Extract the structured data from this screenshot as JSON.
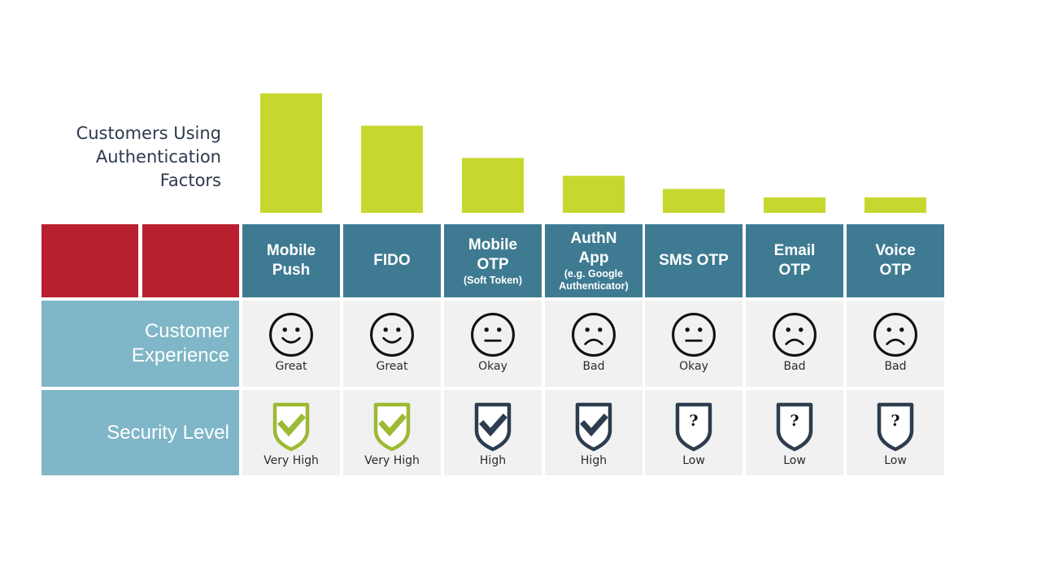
{
  "chart_data": {
    "type": "bar",
    "title_lines": [
      "Customers Using",
      "Authentication",
      "Factors"
    ],
    "categories": [
      "Mobile Push",
      "FIDO",
      "Mobile OTP",
      "AuthN App",
      "SMS OTP",
      "Email OTP",
      "Voice OTP"
    ],
    "values": [
      100,
      73,
      46,
      31,
      20,
      13,
      13
    ],
    "ylim": [
      0,
      100
    ],
    "bar_color": "#c6d82f"
  },
  "columns": [
    {
      "header_lines": [
        "Mobile",
        "Push"
      ],
      "header_sub": [],
      "experience": "Great",
      "experience_icon": "smile-icon",
      "security": "Very High",
      "security_icon": "shield-check-green-icon"
    },
    {
      "header_lines": [
        "FIDO"
      ],
      "header_sub": [],
      "experience": "Great",
      "experience_icon": "smile-icon",
      "security": "Very High",
      "security_icon": "shield-check-green-icon"
    },
    {
      "header_lines": [
        "Mobile",
        "OTP"
      ],
      "header_sub": [
        "(Soft Token)"
      ],
      "experience": "Okay",
      "experience_icon": "neutral-face-icon",
      "security": "High",
      "security_icon": "shield-check-dark-icon"
    },
    {
      "header_lines": [
        "AuthN",
        "App"
      ],
      "header_sub": [
        "(e.g. Google",
        "Authenticator)"
      ],
      "experience": "Bad",
      "experience_icon": "frown-icon",
      "security": "High",
      "security_icon": "shield-check-dark-icon"
    },
    {
      "header_lines": [
        "SMS OTP"
      ],
      "header_sub": [],
      "experience": "Okay",
      "experience_icon": "neutral-face-icon",
      "security": "Low",
      "security_icon": "shield-question-icon"
    },
    {
      "header_lines": [
        "Email",
        "OTP"
      ],
      "header_sub": [],
      "experience": "Bad",
      "experience_icon": "frown-icon",
      "security": "Low",
      "security_icon": "shield-question-icon"
    },
    {
      "header_lines": [
        "Voice",
        "OTP"
      ],
      "header_sub": [],
      "experience": "Bad",
      "experience_icon": "frown-icon",
      "security": "Low",
      "security_icon": "shield-question-icon"
    }
  ],
  "row_labels": {
    "experience_lines": [
      "Customer",
      "Experience"
    ],
    "security_lines": [
      "Security Level"
    ]
  },
  "colors": {
    "header_bg": "#3e7b92",
    "corner_red": "#b8202f",
    "row_label_bg": "#7fb6c8",
    "cell_bg": "#f1f1f1",
    "shield_green": "#9cba33",
    "shield_dark": "#2d3c4e"
  }
}
